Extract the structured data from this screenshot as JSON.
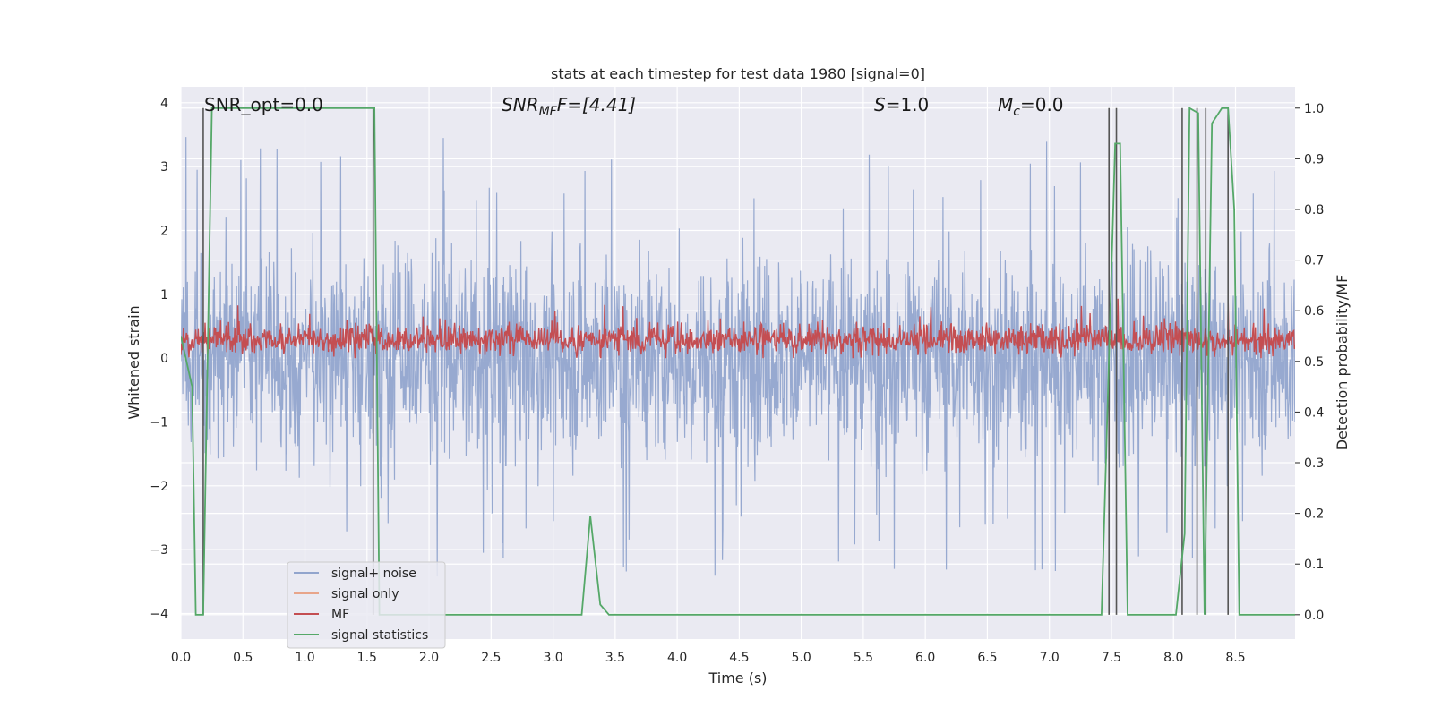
{
  "chart_data": {
    "type": "line",
    "title": "stats at each timestep for test data 1980 [signal=0]",
    "xlabel": "Time (s)",
    "ylabel": "Whitened strain",
    "y2label": "Detection probability/MF",
    "xlim": [
      0,
      8.98
    ],
    "ylim": [
      -4.4,
      4.25
    ],
    "y2lim": [
      -0.048,
      1.042
    ],
    "xticks": [
      "0.0",
      "0.5",
      "1.0",
      "1.5",
      "2.0",
      "2.5",
      "3.0",
      "3.5",
      "4.0",
      "4.5",
      "5.0",
      "5.5",
      "6.0",
      "6.5",
      "7.0",
      "7.5",
      "8.0",
      "8.5"
    ],
    "yticks": [
      "4",
      "3",
      "2",
      "1",
      "0",
      "−1",
      "−2",
      "−3",
      "−4"
    ],
    "y2ticks": [
      "1.0",
      "0.9",
      "0.8",
      "0.7",
      "0.6",
      "0.5",
      "0.4",
      "0.3",
      "0.2",
      "0.1",
      "0.0"
    ],
    "annotations": [
      {
        "id": "snr_opt",
        "text": "SNR_opt=0.0"
      },
      {
        "id": "snr_mf_pre",
        "text": "SNR",
        "sub": "MF",
        "post": "F=[4.41]"
      },
      {
        "id": "s",
        "text": "S",
        "post": "=1.0"
      },
      {
        "id": "mc",
        "text": "M",
        "sub": "c",
        "post": "=0.0"
      }
    ],
    "legend": {
      "placement": "lower-left",
      "entries": [
        "signal+ noise",
        "signal only",
        "MF",
        "signal statistics"
      ]
    },
    "series": [
      {
        "name": "signal+ noise",
        "color": "#92a5cd",
        "axis": "left",
        "kind": "noise",
        "amplitude": 1.0,
        "peak_max": 3.6,
        "peak_min": -4.0
      },
      {
        "name": "signal only",
        "color": "#e8a58a",
        "axis": "left",
        "kind": "flat",
        "values_note": "zero signal"
      },
      {
        "name": "MF",
        "color": "#c44e52",
        "axis": "left",
        "kind": "mf",
        "mean": 0.28,
        "max": 0.98,
        "min": 0.0
      },
      {
        "name": "signal statistics",
        "color": "#55a868",
        "axis": "right",
        "x": [
          0.0,
          0.09,
          0.12,
          0.18,
          0.25,
          1.5,
          1.56,
          1.6,
          3.23,
          3.3,
          3.38,
          3.45,
          7.42,
          7.53,
          7.57,
          7.63,
          8.02,
          8.09,
          8.13,
          8.2,
          8.25,
          8.31,
          8.39,
          8.44,
          8.49,
          8.53,
          8.98
        ],
        "y": [
          0.55,
          0.45,
          0.0,
          0.0,
          1.0,
          1.0,
          1.0,
          0.0,
          0.0,
          0.195,
          0.02,
          0.0,
          0.0,
          0.93,
          0.93,
          0.0,
          0.0,
          0.16,
          1.0,
          0.99,
          0.0,
          0.97,
          1.0,
          1.0,
          0.8,
          0.0,
          0.0
        ]
      }
    ],
    "markers": {
      "color": "#555555",
      "x": [
        0.18,
        1.55,
        7.48,
        7.54,
        8.07,
        8.19,
        8.26,
        8.44
      ],
      "y2": [
        0.0,
        1.0
      ]
    }
  }
}
